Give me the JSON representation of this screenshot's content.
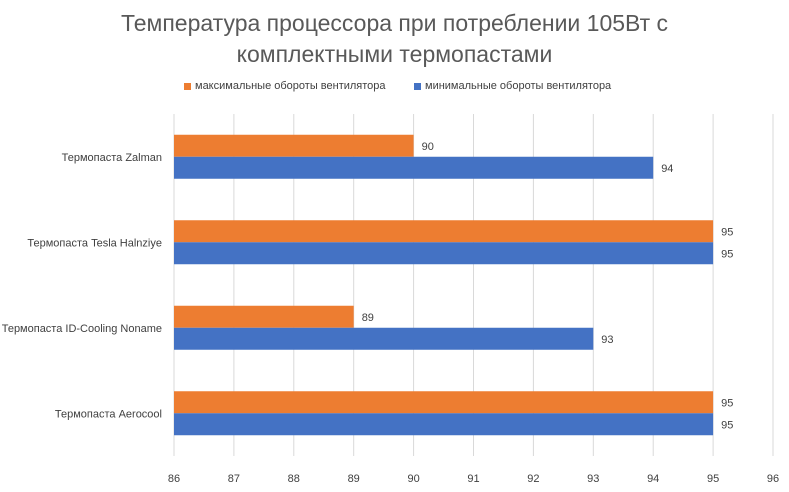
{
  "chart_data": {
    "type": "bar",
    "orientation": "horizontal",
    "title_lines": [
      "Температура процессора при потреблении 105Вт с",
      "комплектными термопастами"
    ],
    "categories": [
      "Термопаста Zalman",
      "Термопаста Tesla Halnziye",
      "Термопаста ID-Cooling Noname",
      "Термопаста Aerocool"
    ],
    "series": [
      {
        "name": "максимальные обороты вентилятора",
        "color": "#ED7D31",
        "values": [
          90,
          95,
          89,
          95
        ]
      },
      {
        "name": "минимальные обороты вентилятора",
        "color": "#4472C4",
        "values": [
          94,
          95,
          93,
          95
        ]
      }
    ],
    "xlim": [
      86,
      96
    ],
    "xticks": [
      "86",
      "87",
      "88",
      "89",
      "90",
      "91",
      "92",
      "93",
      "94",
      "95",
      "96"
    ],
    "grid": true,
    "legend_position": "top",
    "data_labels": true
  }
}
